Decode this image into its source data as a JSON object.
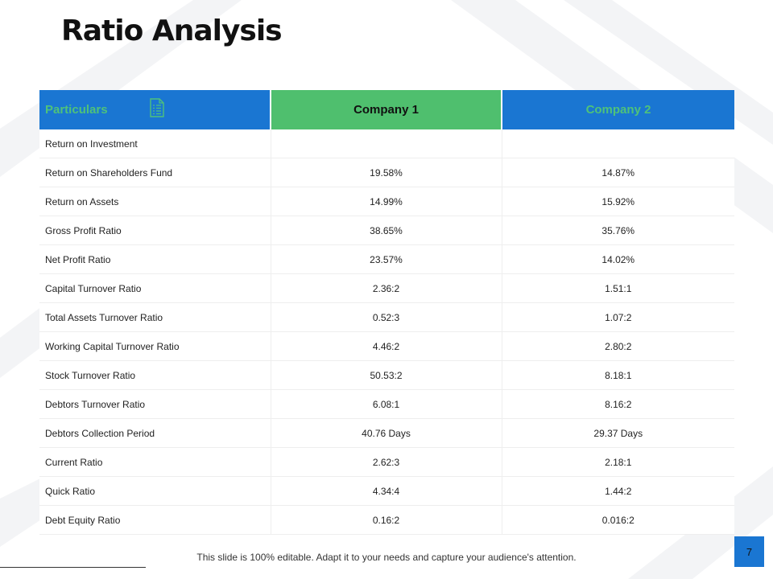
{
  "slide": {
    "title": "Ratio Analysis",
    "footer_note": "This slide is 100% editable. Adapt it to your needs and capture your audience's attention.",
    "page_number": "7"
  },
  "colors": {
    "header_blue": "#1a76d2",
    "header_green": "#4fbf6e",
    "header_text_green": "#4fc27a"
  },
  "table": {
    "headers": {
      "particulars": "Particulars",
      "company1": "Company 1",
      "company2": "Company 2"
    },
    "header_icon": "document-list-icon",
    "rows": [
      {
        "label": "Return on Investment",
        "c1": "",
        "c2": ""
      },
      {
        "label": "Return on Shareholders Fund",
        "c1": "19.58%",
        "c2": "14.87%"
      },
      {
        "label": "Return on Assets",
        "c1": "14.99%",
        "c2": "15.92%"
      },
      {
        "label": "Gross Profit Ratio",
        "c1": "38.65%",
        "c2": "35.76%"
      },
      {
        "label": "Net Profit Ratio",
        "c1": "23.57%",
        "c2": "14.02%"
      },
      {
        "label": "Capital Turnover Ratio",
        "c1": "2.36:2",
        "c2": "1.51:1"
      },
      {
        "label": "Total Assets Turnover Ratio",
        "c1": "0.52:3",
        "c2": "1.07:2"
      },
      {
        "label": "Working Capital Turnover Ratio",
        "c1": "4.46:2",
        "c2": "2.80:2"
      },
      {
        "label": "Stock Turnover Ratio",
        "c1": "50.53:2",
        "c2": "8.18:1"
      },
      {
        "label": "Debtors Turnover Ratio",
        "c1": "6.08:1",
        "c2": "8.16:2"
      },
      {
        "label": "Debtors Collection Period",
        "c1": "40.76 Days",
        "c2": "29.37 Days"
      },
      {
        "label": "Current Ratio",
        "c1": "2.62:3",
        "c2": "2.18:1"
      },
      {
        "label": "Quick Ratio",
        "c1": "4.34:4",
        "c2": "1.44:2"
      },
      {
        "label": "Debt Equity Ratio",
        "c1": "0.16:2",
        "c2": "0.016:2"
      }
    ]
  }
}
